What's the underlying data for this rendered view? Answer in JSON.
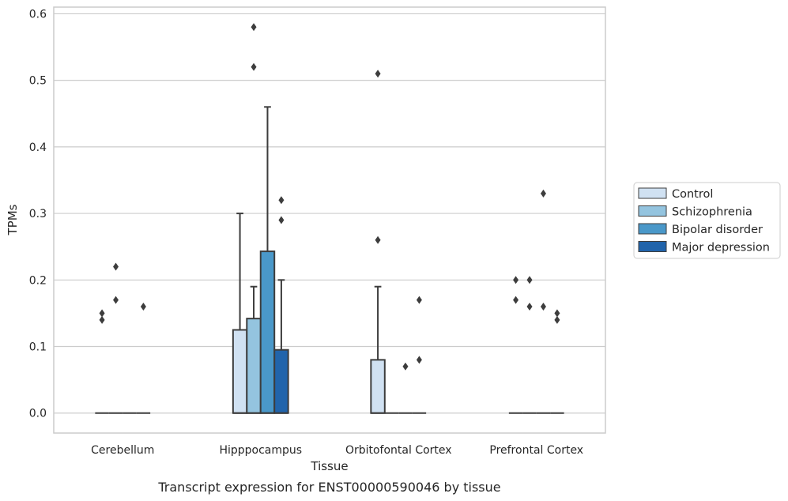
{
  "chart_data": {
    "type": "box",
    "title": "Transcript expression for ENST00000590046 by tissue",
    "xlabel": "Tissue",
    "ylabel": "TPMs",
    "ylim": [
      -0.03,
      0.61
    ],
    "yticks": [
      "0.0",
      "0.1",
      "0.2",
      "0.3",
      "0.4",
      "0.5",
      "0.6"
    ],
    "ytick_values": [
      0,
      0.1,
      0.2,
      0.3,
      0.4,
      0.5,
      0.6
    ],
    "categories": [
      "Cerebellum",
      "Hipppocampus",
      "Orbitofontal Cortex",
      "Prefrontal Cortex"
    ],
    "grid": "horizontal",
    "legend_position": "right",
    "series": [
      {
        "name": "Control",
        "color": "#d0e1f2",
        "boxes": [
          {
            "q1": 0,
            "median": 0,
            "q3": 0,
            "whisker_low": 0,
            "whisker_high": 0,
            "outliers": [
              0.14,
              0.15
            ]
          },
          {
            "q1": 0,
            "median": 0,
            "q3": 0.125,
            "whisker_low": 0,
            "whisker_high": 0.3,
            "outliers": []
          },
          {
            "q1": 0,
            "median": 0,
            "q3": 0.08,
            "whisker_low": 0,
            "whisker_high": 0.19,
            "outliers": [
              0.26,
              0.51
            ]
          },
          {
            "q1": 0,
            "median": 0,
            "q3": 0,
            "whisker_low": 0,
            "whisker_high": 0,
            "outliers": [
              0.17,
              0.2
            ]
          }
        ]
      },
      {
        "name": "Schizophrenia",
        "color": "#94c4df",
        "boxes": [
          {
            "q1": 0,
            "median": 0,
            "q3": 0,
            "whisker_low": 0,
            "whisker_high": 0,
            "outliers": [
              0.17,
              0.22
            ]
          },
          {
            "q1": 0,
            "median": 0,
            "q3": 0.142,
            "whisker_low": 0,
            "whisker_high": 0.19,
            "outliers": [
              0.52,
              0.58
            ]
          },
          {
            "q1": 0,
            "median": 0,
            "q3": 0,
            "whisker_low": 0,
            "whisker_high": 0,
            "outliers": []
          },
          {
            "q1": 0,
            "median": 0,
            "q3": 0,
            "whisker_low": 0,
            "whisker_high": 0,
            "outliers": [
              0.16,
              0.2
            ]
          }
        ]
      },
      {
        "name": "Bipolar disorder",
        "color": "#4a98c9",
        "boxes": [
          {
            "q1": 0,
            "median": 0,
            "q3": 0,
            "whisker_low": 0,
            "whisker_high": 0,
            "outliers": []
          },
          {
            "q1": 0,
            "median": 0,
            "q3": 0.243,
            "whisker_low": 0,
            "whisker_high": 0.46,
            "outliers": []
          },
          {
            "q1": 0,
            "median": 0,
            "q3": 0,
            "whisker_low": 0,
            "whisker_high": 0,
            "outliers": [
              0.07
            ]
          },
          {
            "q1": 0,
            "median": 0,
            "q3": 0,
            "whisker_low": 0,
            "whisker_high": 0,
            "outliers": [
              0.16,
              0.33
            ]
          }
        ]
      },
      {
        "name": "Major depression",
        "color": "#2164ab",
        "boxes": [
          {
            "q1": 0,
            "median": 0,
            "q3": 0,
            "whisker_low": 0,
            "whisker_high": 0,
            "outliers": [
              0.16
            ]
          },
          {
            "q1": 0,
            "median": 0,
            "q3": 0.095,
            "whisker_low": 0,
            "whisker_high": 0.2,
            "outliers": [
              0.29,
              0.32
            ]
          },
          {
            "q1": 0,
            "median": 0,
            "q3": 0,
            "whisker_low": 0,
            "whisker_high": 0,
            "outliers": [
              0.08,
              0.17
            ]
          },
          {
            "q1": 0,
            "median": 0,
            "q3": 0,
            "whisker_low": 0,
            "whisker_high": 0,
            "outliers": [
              0.14,
              0.15
            ]
          }
        ]
      }
    ]
  }
}
